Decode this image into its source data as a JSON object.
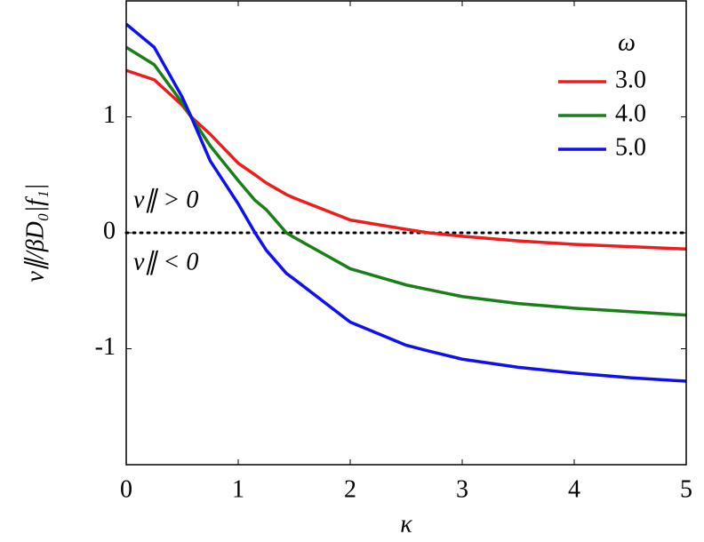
{
  "chart_data": {
    "type": "line",
    "xlabel": "κ",
    "ylabel": "v∥/βD₀|f₁|",
    "x": [
      0,
      0.25,
      0.5,
      0.58,
      0.75,
      1,
      1.15,
      1.25,
      1.43,
      1.5,
      2,
      2.5,
      2.7,
      3,
      3.5,
      4,
      4.5,
      5
    ],
    "series": [
      {
        "name": "3.0",
        "color": "#ee1c1c",
        "values": [
          1.4,
          1.32,
          1.1,
          1.0,
          0.85,
          0.6,
          0.5,
          0.43,
          0.33,
          0.3,
          0.11,
          0.03,
          0.0,
          -0.03,
          -0.07,
          -0.1,
          -0.12,
          -0.14
        ]
      },
      {
        "name": "4.0",
        "color": "#1a7f1a",
        "values": [
          1.6,
          1.45,
          1.12,
          1.0,
          0.75,
          0.45,
          0.28,
          0.2,
          0.0,
          -0.04,
          -0.31,
          -0.45,
          -0.49,
          -0.55,
          -0.61,
          -0.65,
          -0.68,
          -0.71
        ]
      },
      {
        "name": "5.0",
        "color": "#1010ee",
        "values": [
          1.8,
          1.6,
          1.17,
          1.0,
          0.62,
          0.25,
          0.0,
          -0.15,
          -0.35,
          -0.4,
          -0.77,
          -0.97,
          -1.02,
          -1.09,
          -1.16,
          -1.21,
          -1.25,
          -1.28
        ]
      }
    ],
    "legend_title": "ω",
    "legend": "upper right",
    "hline": 0,
    "annotations": [
      "v∥ > 0",
      "v∥ < 0"
    ],
    "xlim": [
      0,
      5
    ],
    "xticks": [
      0,
      1,
      2,
      3,
      4,
      5
    ],
    "ylim": [
      -2,
      2
    ],
    "yticks": [
      -1,
      0,
      1
    ]
  }
}
